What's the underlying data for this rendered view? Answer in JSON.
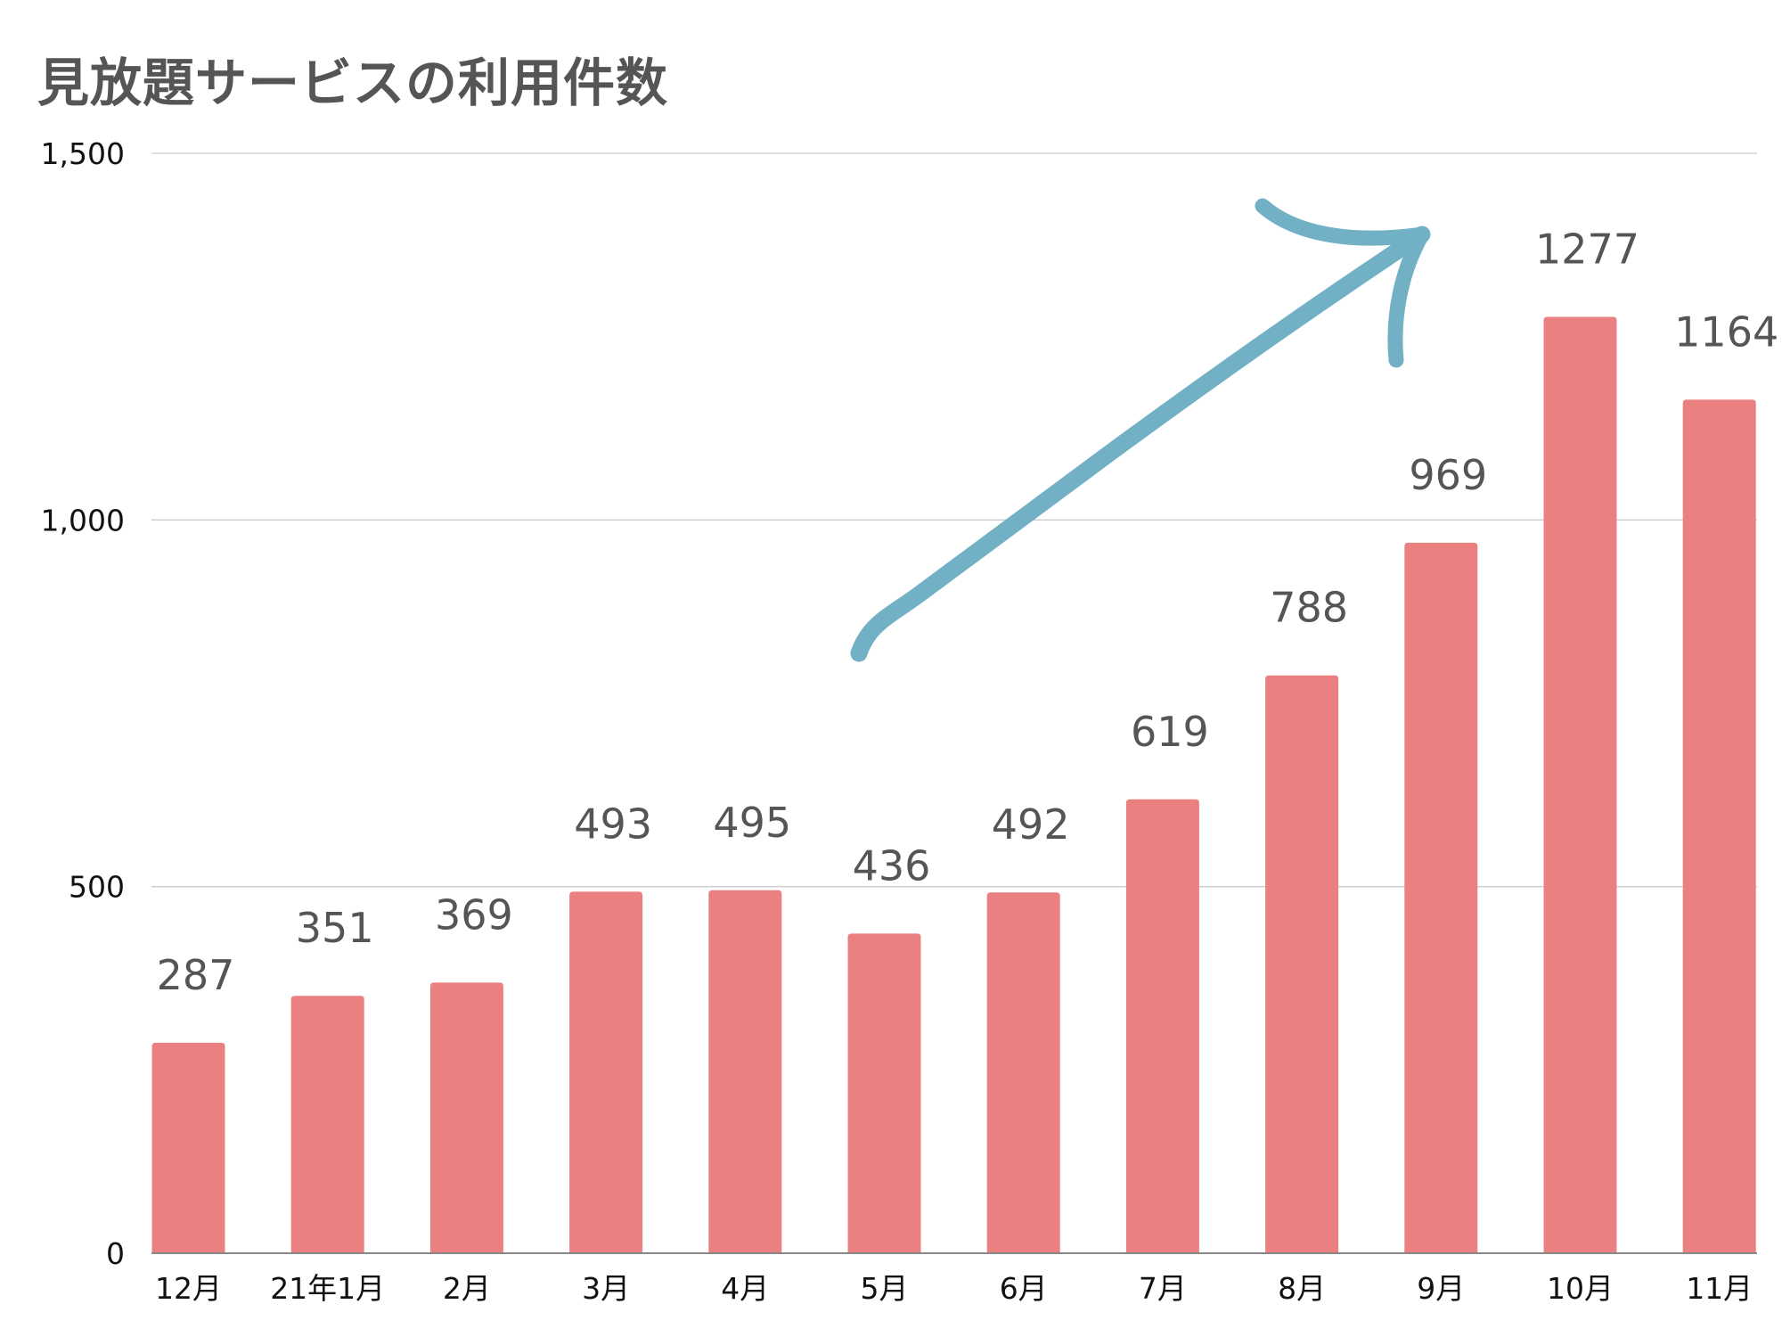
{
  "chart_data": {
    "type": "bar",
    "title": "見放題サービスの利用件数",
    "categories": [
      "12月",
      "21年1月",
      "2月",
      "3月",
      "4月",
      "5月",
      "6月",
      "7月",
      "8月",
      "9月",
      "10月",
      "11月"
    ],
    "values": [
      287,
      351,
      369,
      493,
      495,
      436,
      492,
      619,
      788,
      969,
      1277,
      1164
    ],
    "data_labels": [
      "287",
      "351",
      "369",
      "493",
      "495",
      "436",
      "492",
      "619",
      "788",
      "969",
      "1277",
      "1164"
    ],
    "ylim": [
      0,
      1500
    ],
    "yticks": [
      0,
      500,
      1000,
      1500
    ],
    "ytick_labels": [
      "0",
      "500",
      "1,000",
      "1,500"
    ],
    "xlabel": "",
    "ylabel": "",
    "grid": true,
    "bar_color": "#eb8080",
    "annotation": {
      "type": "hand-drawn upward arrow",
      "color": "#72b0c6"
    }
  }
}
